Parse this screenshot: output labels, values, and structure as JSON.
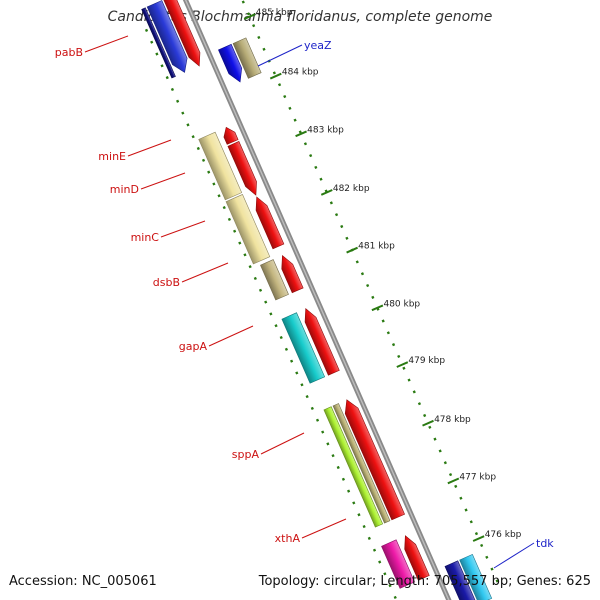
{
  "title": "Candidatus Blochmannia floridanus, complete genome",
  "footer": {
    "accession": "Accession: NC_005061",
    "stats": "Topology: circular; Length: 705,557 bp; Genes: 625"
  },
  "colors": {
    "backbone": "#888888",
    "tick": "#2a7a12",
    "forward_label": "#1e24c8",
    "reverse_label": "#cc1111"
  },
  "ticks": [
    "485 kbp",
    "484 kbp",
    "483 kbp",
    "482 kbp",
    "481 kbp",
    "480 kbp",
    "479 kbp",
    "478 kbp",
    "477 kbp",
    "476 kbp"
  ],
  "genes": [
    {
      "name": "pabB",
      "strand": "reverse"
    },
    {
      "name": "yeaZ",
      "strand": "forward"
    },
    {
      "name": "minE",
      "strand": "reverse"
    },
    {
      "name": "minD",
      "strand": "reverse"
    },
    {
      "name": "minC",
      "strand": "reverse"
    },
    {
      "name": "dsbB",
      "strand": "reverse"
    },
    {
      "name": "gapA",
      "strand": "reverse"
    },
    {
      "name": "sppA",
      "strand": "reverse"
    },
    {
      "name": "xthA",
      "strand": "reverse"
    },
    {
      "name": "tdk",
      "strand": "forward"
    }
  ]
}
